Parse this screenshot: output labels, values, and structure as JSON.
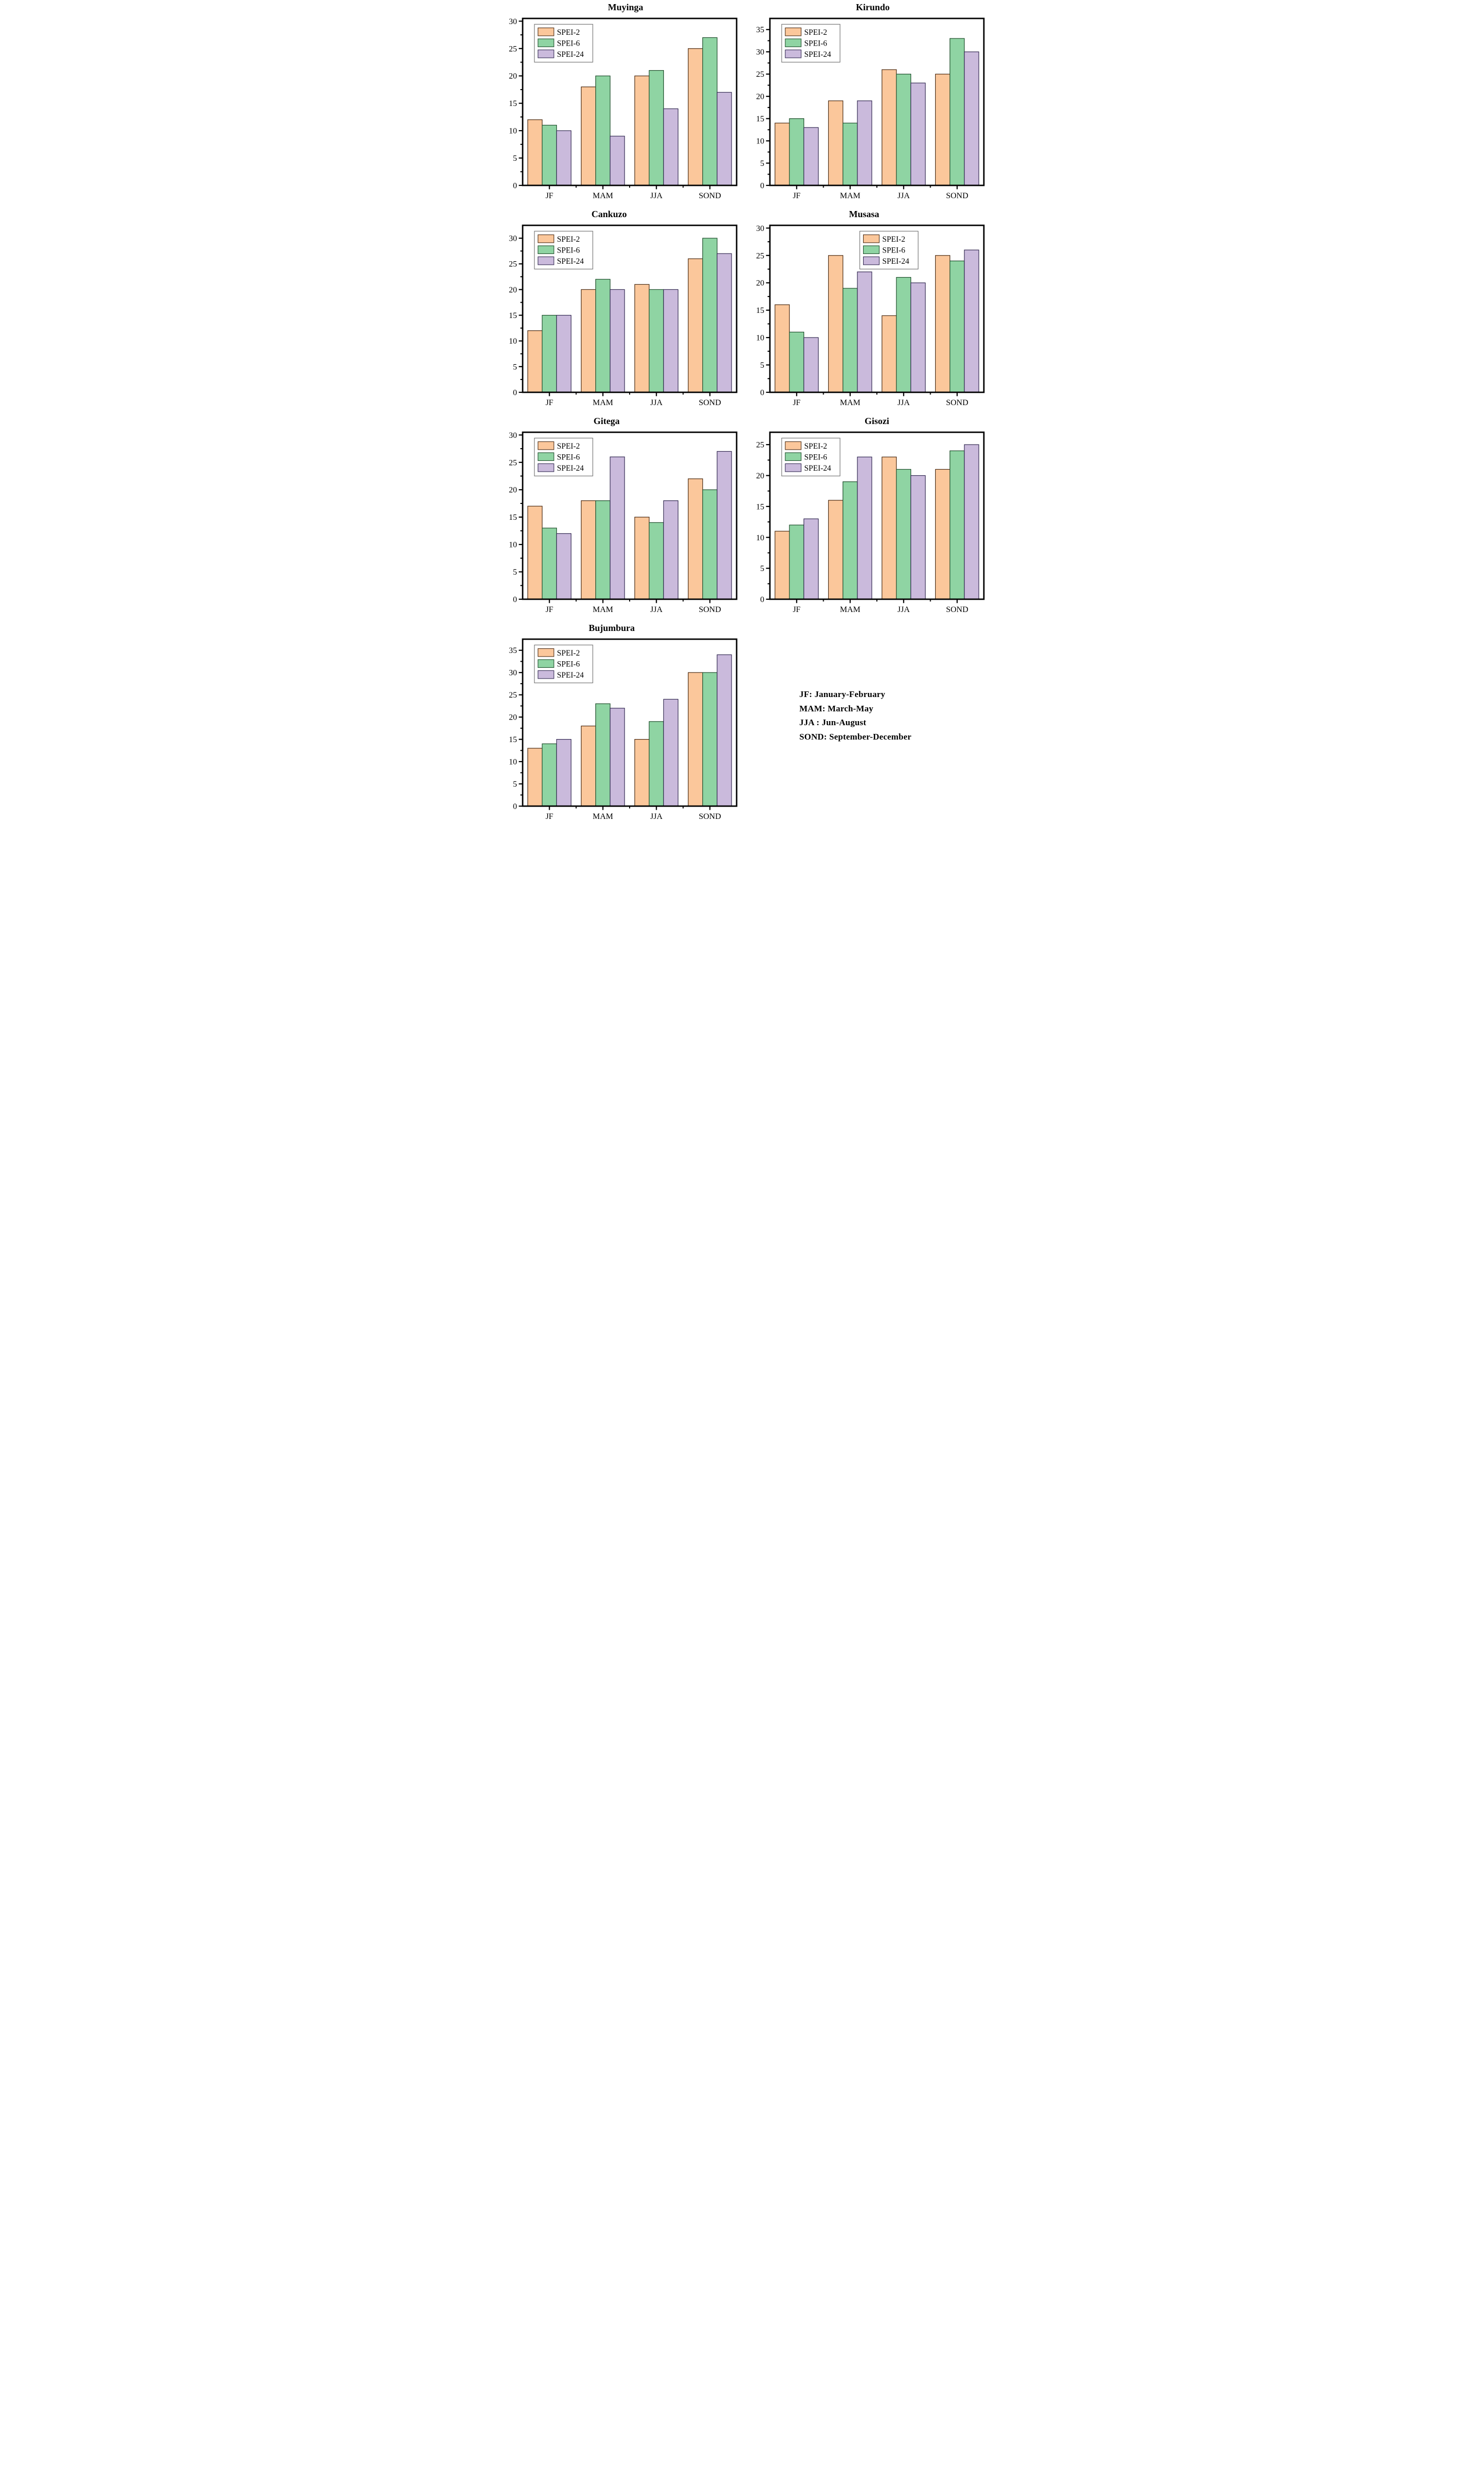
{
  "figure": {
    "series_labels": [
      "SPEI-2",
      "SPEI-6",
      "SPEI-24"
    ],
    "categories": [
      "JF",
      "MAM",
      "JJA",
      "SOND"
    ],
    "colors": {
      "fills": [
        "#FBC79B",
        "#8FD4A3",
        "#CABADC"
      ],
      "edges": [
        "#4a2a12",
        "#1e4d2b",
        "#332a52"
      ],
      "axis": "#000000",
      "legend_border": "#777777",
      "background": "#ffffff"
    },
    "minor_tick_step": 2.5
  },
  "chart_data": [
    {
      "type": "bar",
      "title": "Muyinga",
      "title_dx": -8,
      "legend_pos": "left",
      "categories": [
        "JF",
        "MAM",
        "JJA",
        "SOND"
      ],
      "series": [
        {
          "name": "SPEI-2",
          "values": [
            12,
            18,
            20,
            25
          ]
        },
        {
          "name": "SPEI-6",
          "values": [
            11,
            20,
            21,
            27
          ]
        },
        {
          "name": "SPEI-24",
          "values": [
            10,
            9,
            14,
            17
          ]
        }
      ],
      "ylim": [
        0,
        30.5
      ],
      "yticks": [
        0,
        5,
        10,
        15,
        20,
        25,
        30
      ],
      "xlabel": "",
      "ylabel": "",
      "grid": false,
      "legend_position": "upper left"
    },
    {
      "type": "bar",
      "title": "Kirundo",
      "title_dx": -8,
      "legend_pos": "left",
      "categories": [
        "JF",
        "MAM",
        "JJA",
        "SOND"
      ],
      "series": [
        {
          "name": "SPEI-2",
          "values": [
            14,
            19,
            26,
            25
          ]
        },
        {
          "name": "SPEI-6",
          "values": [
            15,
            14,
            25,
            33
          ]
        },
        {
          "name": "SPEI-24",
          "values": [
            13,
            19,
            23,
            30
          ]
        }
      ],
      "ylim": [
        0,
        37.5
      ],
      "yticks": [
        0,
        5,
        10,
        15,
        20,
        25,
        30,
        35
      ],
      "xlabel": "",
      "ylabel": "",
      "grid": false,
      "legend_position": "upper left"
    },
    {
      "type": "bar",
      "title": "Cankuzo",
      "title_dx": -40,
      "legend_pos": "left",
      "categories": [
        "JF",
        "MAM",
        "JJA",
        "SOND"
      ],
      "series": [
        {
          "name": "SPEI-2",
          "values": [
            12,
            20,
            21,
            26
          ]
        },
        {
          "name": "SPEI-6",
          "values": [
            15,
            22,
            20,
            30
          ]
        },
        {
          "name": "SPEI-24",
          "values": [
            15,
            20,
            20,
            27
          ]
        }
      ],
      "ylim": [
        0,
        32.5
      ],
      "yticks": [
        0,
        5,
        10,
        15,
        20,
        25,
        30
      ],
      "xlabel": "",
      "ylabel": "",
      "grid": false,
      "legend_position": "upper left"
    },
    {
      "type": "bar",
      "title": "Musasa",
      "title_dx": -25,
      "legend_pos": "center",
      "categories": [
        "JF",
        "MAM",
        "JJA",
        "SOND"
      ],
      "series": [
        {
          "name": "SPEI-2",
          "values": [
            16,
            25,
            14,
            25
          ]
        },
        {
          "name": "SPEI-6",
          "values": [
            11,
            19,
            21,
            24
          ]
        },
        {
          "name": "SPEI-24",
          "values": [
            10,
            22,
            20,
            26
          ]
        }
      ],
      "ylim": [
        0,
        30.5
      ],
      "yticks": [
        0,
        5,
        10,
        15,
        20,
        25,
        30
      ],
      "xlabel": "",
      "ylabel": "",
      "grid": false,
      "legend_position": "upper center"
    },
    {
      "type": "bar",
      "title": "Gitega",
      "title_dx": -45,
      "legend_pos": "left",
      "categories": [
        "JF",
        "MAM",
        "JJA",
        "SOND"
      ],
      "series": [
        {
          "name": "SPEI-2",
          "values": [
            17,
            18,
            15,
            22
          ]
        },
        {
          "name": "SPEI-6",
          "values": [
            13,
            18,
            14,
            20
          ]
        },
        {
          "name": "SPEI-24",
          "values": [
            12,
            26,
            18,
            27
          ]
        }
      ],
      "ylim": [
        0,
        30.5
      ],
      "yticks": [
        0,
        5,
        10,
        15,
        20,
        25,
        30
      ],
      "xlabel": "",
      "ylabel": "",
      "grid": false,
      "legend_position": "upper left"
    },
    {
      "type": "bar",
      "title": "Gisozi",
      "title_dx": 0,
      "legend_pos": "left",
      "categories": [
        "JF",
        "MAM",
        "JJA",
        "SOND"
      ],
      "series": [
        {
          "name": "SPEI-2",
          "values": [
            11,
            16,
            23,
            21
          ]
        },
        {
          "name": "SPEI-6",
          "values": [
            12,
            19,
            21,
            24
          ]
        },
        {
          "name": "SPEI-24",
          "values": [
            13,
            23,
            20,
            25
          ]
        }
      ],
      "ylim": [
        0,
        27
      ],
      "yticks": [
        0,
        5,
        10,
        15,
        20,
        25
      ],
      "xlabel": "",
      "ylabel": "",
      "grid": false,
      "legend_position": "upper left"
    },
    {
      "type": "bar",
      "title": "Bujumbura",
      "title_dx": -35,
      "legend_pos": "left",
      "categories": [
        "JF",
        "MAM",
        "JJA",
        "SOND"
      ],
      "series": [
        {
          "name": "SPEI-2",
          "values": [
            13,
            18,
            15,
            30
          ]
        },
        {
          "name": "SPEI-6",
          "values": [
            14,
            23,
            19,
            30
          ]
        },
        {
          "name": "SPEI-24",
          "values": [
            15,
            22,
            24,
            34
          ]
        }
      ],
      "ylim": [
        0,
        37.5
      ],
      "yticks": [
        0,
        5,
        10,
        15,
        20,
        25,
        30,
        35
      ],
      "xlabel": "",
      "ylabel": "",
      "grid": false,
      "legend_position": "upper left"
    }
  ],
  "notes": {
    "lines": [
      "JF: January-February",
      "MAM: March-May",
      "JJA : Jun-August",
      "SOND: September-December"
    ]
  }
}
